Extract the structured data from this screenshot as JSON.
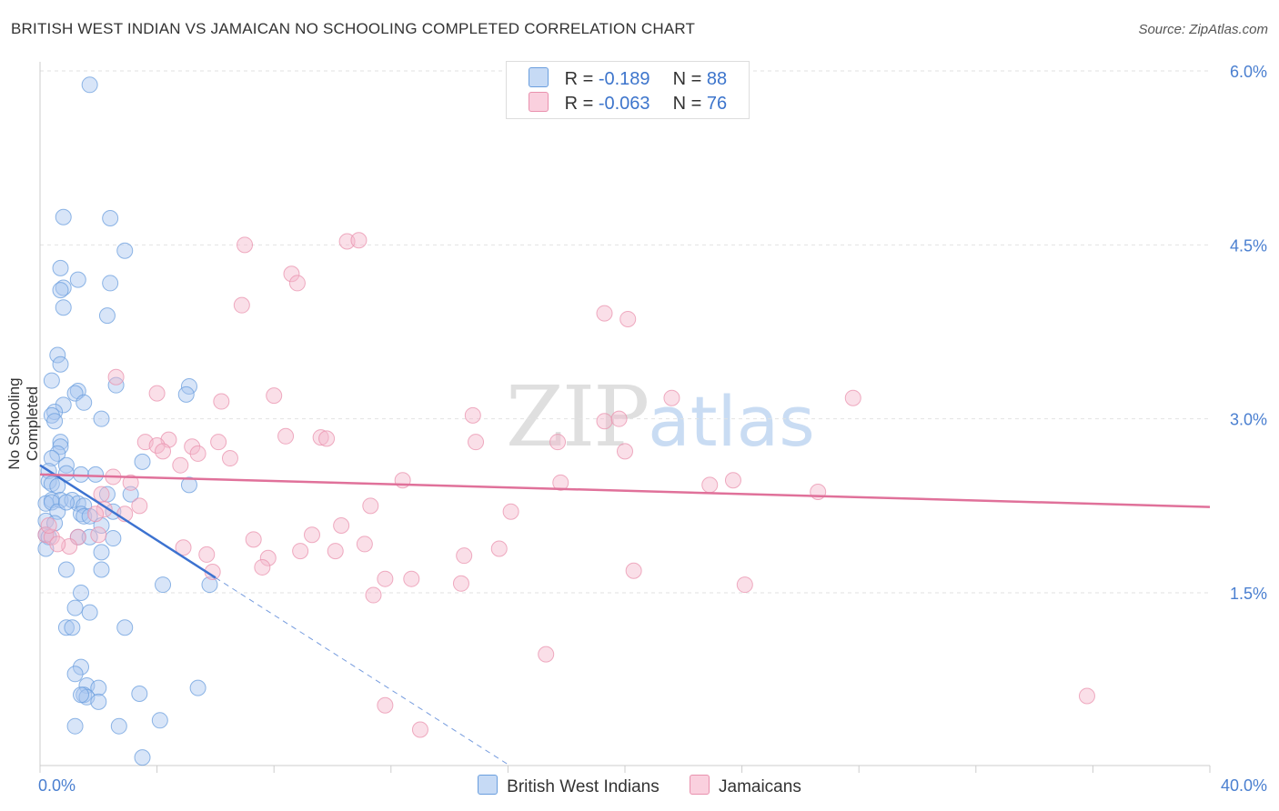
{
  "header": {
    "title": "BRITISH WEST INDIAN VS JAMAICAN NO SCHOOLING COMPLETED CORRELATION CHART",
    "source": "Source: ZipAtlas.com"
  },
  "watermark": {
    "zip": "ZIP",
    "atlas": "atlas"
  },
  "legend_top": {
    "rows": [
      {
        "r_label": "R = ",
        "r_value": "-0.189",
        "n_label": "N = ",
        "n_value": "88"
      },
      {
        "r_label": "R = ",
        "r_value": "-0.063",
        "n_label": "N = ",
        "n_value": "76"
      }
    ]
  },
  "colors": {
    "blue_fill": "#a9c6ef",
    "blue_stroke": "#6a9ede",
    "blue_line": "#3c72d0",
    "pink_fill": "#f5b8cc",
    "pink_stroke": "#e991ae",
    "pink_line": "#e0719a",
    "tick_text": "#4a7fd0",
    "grid": "#e2e2e2"
  },
  "chart_data": {
    "type": "scatter",
    "title": "BRITISH WEST INDIAN VS JAMAICAN NO SCHOOLING COMPLETED CORRELATION CHART",
    "xlabel": "",
    "ylabel": "No Schooling Completed",
    "xlim": [
      0,
      40
    ],
    "ylim": [
      0,
      6.2
    ],
    "x_tick_labels": [
      {
        "value": 0,
        "label": "0.0%"
      },
      {
        "value": 40,
        "label": "40.0%"
      }
    ],
    "y_tick_labels": [
      {
        "value": 1.5,
        "label": "1.5%"
      },
      {
        "value": 3.0,
        "label": "3.0%"
      },
      {
        "value": 4.5,
        "label": "4.5%"
      },
      {
        "value": 6.0,
        "label": "6.0%"
      }
    ],
    "series": [
      {
        "name": "British West Indians",
        "color": "#a9c6ef",
        "trend": {
          "x": [
            0,
            6
          ],
          "y": [
            2.6,
            1.63
          ],
          "dashed_to": [
            16,
            0.02
          ]
        },
        "points": [
          [
            1.7,
            5.88
          ],
          [
            0.8,
            4.74
          ],
          [
            2.4,
            4.73
          ],
          [
            2.9,
            4.45
          ],
          [
            0.7,
            4.3
          ],
          [
            1.3,
            4.2
          ],
          [
            2.4,
            4.17
          ],
          [
            0.8,
            4.13
          ],
          [
            0.7,
            4.11
          ],
          [
            0.8,
            3.96
          ],
          [
            2.3,
            3.89
          ],
          [
            0.6,
            3.55
          ],
          [
            0.7,
            3.47
          ],
          [
            0.4,
            3.33
          ],
          [
            2.6,
            3.29
          ],
          [
            5.1,
            3.28
          ],
          [
            1.3,
            3.24
          ],
          [
            1.2,
            3.22
          ],
          [
            5.0,
            3.21
          ],
          [
            1.5,
            3.14
          ],
          [
            0.8,
            3.12
          ],
          [
            0.5,
            3.06
          ],
          [
            0.4,
            3.03
          ],
          [
            0.5,
            2.98
          ],
          [
            2.1,
            3.0
          ],
          [
            0.7,
            2.8
          ],
          [
            0.7,
            2.76
          ],
          [
            0.6,
            2.7
          ],
          [
            0.4,
            2.66
          ],
          [
            0.9,
            2.6
          ],
          [
            3.5,
            2.63
          ],
          [
            0.3,
            2.55
          ],
          [
            0.9,
            2.53
          ],
          [
            1.4,
            2.52
          ],
          [
            1.9,
            2.52
          ],
          [
            0.3,
            2.46
          ],
          [
            0.4,
            2.44
          ],
          [
            0.6,
            2.42
          ],
          [
            5.1,
            2.43
          ],
          [
            0.4,
            2.3
          ],
          [
            0.7,
            2.3
          ],
          [
            1.1,
            2.3
          ],
          [
            2.3,
            2.35
          ],
          [
            3.1,
            2.35
          ],
          [
            0.2,
            2.27
          ],
          [
            0.4,
            2.28
          ],
          [
            1.3,
            2.27
          ],
          [
            1.5,
            2.25
          ],
          [
            0.6,
            2.2
          ],
          [
            1.4,
            2.18
          ],
          [
            1.5,
            2.16
          ],
          [
            1.7,
            2.16
          ],
          [
            0.2,
            2.12
          ],
          [
            2.1,
            2.08
          ],
          [
            0.2,
            2.0
          ],
          [
            0.3,
            1.98
          ],
          [
            1.3,
            1.98
          ],
          [
            1.7,
            1.98
          ],
          [
            2.5,
            1.97
          ],
          [
            0.2,
            1.88
          ],
          [
            2.1,
            1.85
          ],
          [
            2.1,
            1.7
          ],
          [
            0.9,
            1.7
          ],
          [
            4.2,
            1.57
          ],
          [
            5.8,
            1.57
          ],
          [
            1.4,
            1.5
          ],
          [
            1.2,
            1.37
          ],
          [
            1.7,
            1.33
          ],
          [
            0.9,
            1.2
          ],
          [
            1.1,
            1.2
          ],
          [
            2.9,
            1.2
          ],
          [
            1.4,
            0.86
          ],
          [
            1.2,
            0.8
          ],
          [
            1.6,
            0.7
          ],
          [
            2.0,
            0.68
          ],
          [
            5.4,
            0.68
          ],
          [
            1.5,
            0.62
          ],
          [
            1.6,
            0.6
          ],
          [
            1.4,
            0.62
          ],
          [
            3.4,
            0.63
          ],
          [
            2.0,
            0.56
          ],
          [
            4.1,
            0.4
          ],
          [
            1.2,
            0.35
          ],
          [
            2.7,
            0.35
          ],
          [
            3.5,
            0.08
          ],
          [
            0.5,
            2.1
          ],
          [
            0.9,
            2.28
          ],
          [
            2.5,
            2.2
          ]
        ]
      },
      {
        "name": "Jamaicans",
        "color": "#f5b8cc",
        "trend": {
          "x": [
            0,
            40
          ],
          "y": [
            2.52,
            2.24
          ]
        },
        "points": [
          [
            10.5,
            4.53
          ],
          [
            10.9,
            4.54
          ],
          [
            7.0,
            4.5
          ],
          [
            8.6,
            4.25
          ],
          [
            8.8,
            4.17
          ],
          [
            6.9,
            3.98
          ],
          [
            19.3,
            3.91
          ],
          [
            20.1,
            3.86
          ],
          [
            2.6,
            3.36
          ],
          [
            4.0,
            3.22
          ],
          [
            8.0,
            3.2
          ],
          [
            21.6,
            3.18
          ],
          [
            27.8,
            3.18
          ],
          [
            6.2,
            3.15
          ],
          [
            14.8,
            3.03
          ],
          [
            19.3,
            2.98
          ],
          [
            19.8,
            3.0
          ],
          [
            8.4,
            2.85
          ],
          [
            9.6,
            2.84
          ],
          [
            9.8,
            2.83
          ],
          [
            4.4,
            2.82
          ],
          [
            3.6,
            2.8
          ],
          [
            4.0,
            2.77
          ],
          [
            5.2,
            2.76
          ],
          [
            6.1,
            2.8
          ],
          [
            14.9,
            2.8
          ],
          [
            17.7,
            2.8
          ],
          [
            4.2,
            2.72
          ],
          [
            5.4,
            2.7
          ],
          [
            6.5,
            2.66
          ],
          [
            20.0,
            2.72
          ],
          [
            4.8,
            2.6
          ],
          [
            2.5,
            2.5
          ],
          [
            3.1,
            2.45
          ],
          [
            12.4,
            2.47
          ],
          [
            17.8,
            2.45
          ],
          [
            22.9,
            2.43
          ],
          [
            23.7,
            2.47
          ],
          [
            26.6,
            2.37
          ],
          [
            2.1,
            2.35
          ],
          [
            3.4,
            2.25
          ],
          [
            11.3,
            2.25
          ],
          [
            16.1,
            2.2
          ],
          [
            2.2,
            2.22
          ],
          [
            1.9,
            2.18
          ],
          [
            2.9,
            2.18
          ],
          [
            10.3,
            2.08
          ],
          [
            9.3,
            2.0
          ],
          [
            7.3,
            1.96
          ],
          [
            11.1,
            1.92
          ],
          [
            0.2,
            2.0
          ],
          [
            0.4,
            1.98
          ],
          [
            1.3,
            1.98
          ],
          [
            1.0,
            1.9
          ],
          [
            4.9,
            1.89
          ],
          [
            8.9,
            1.86
          ],
          [
            10.1,
            1.86
          ],
          [
            15.7,
            1.88
          ],
          [
            14.5,
            1.82
          ],
          [
            5.7,
            1.83
          ],
          [
            7.8,
            1.8
          ],
          [
            7.6,
            1.72
          ],
          [
            20.3,
            1.69
          ],
          [
            5.9,
            1.68
          ],
          [
            11.8,
            1.62
          ],
          [
            12.7,
            1.62
          ],
          [
            14.4,
            1.58
          ],
          [
            24.1,
            1.57
          ],
          [
            11.4,
            1.48
          ],
          [
            17.3,
            0.97
          ],
          [
            11.8,
            0.53
          ],
          [
            13.0,
            0.32
          ],
          [
            35.8,
            0.61
          ],
          [
            0.6,
            1.92
          ],
          [
            2.0,
            2.0
          ],
          [
            0.3,
            2.08
          ]
        ]
      }
    ]
  },
  "legend_bottom": {
    "items": [
      {
        "label": "British West Indians"
      },
      {
        "label": "Jamaicans"
      }
    ]
  }
}
